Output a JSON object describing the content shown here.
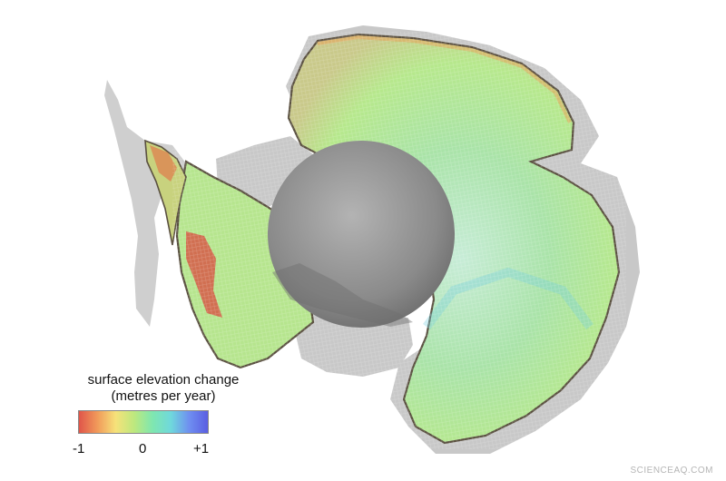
{
  "legend": {
    "title_line1": "surface elevation change",
    "title_line2": "(metres per year)",
    "min_label": "-1",
    "mid_label": "0",
    "max_label": "+1",
    "range": [
      -1,
      1
    ],
    "gradient_colors": [
      "#e0554a",
      "#f19a5a",
      "#f6e27a",
      "#bde87e",
      "#7fe7b0",
      "#6fd8dc",
      "#6f8ef0",
      "#5a5ee2"
    ]
  },
  "map": {
    "ice_shelf_color": "#c8c8c8",
    "coast_color": "#5a5040",
    "pole_hole_color": "#8d8d8d",
    "interior_color": "#a8e6a0",
    "thinning_color": "#d9473c"
  },
  "watermark": "SCIENCEAQ.COM"
}
